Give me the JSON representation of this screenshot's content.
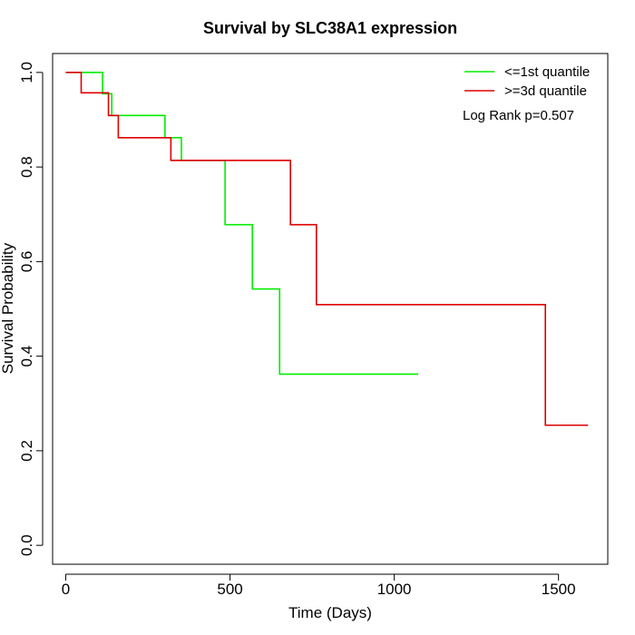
{
  "chart_data": {
    "type": "line",
    "step": true,
    "title": "Survival by SLC38A1 expression",
    "xlabel": "Time (Days)",
    "ylabel": "Survival Probability",
    "xlim": [
      -40,
      1650
    ],
    "ylim": [
      -0.04,
      1.04
    ],
    "xticks": [
      0,
      500,
      1000,
      1500
    ],
    "yticks": [
      0.0,
      0.2,
      0.4,
      0.6,
      0.8,
      1.0
    ],
    "xtick_labels": [
      "0",
      "500",
      "1000",
      "1500"
    ],
    "ytick_labels": [
      "0.0",
      "0.2",
      "0.4",
      "0.6",
      "0.8",
      "1.0"
    ],
    "grid": false,
    "legend_position": "top-right",
    "annotation": "Log Rank p=0.507",
    "series": [
      {
        "name": "<=1st quantile",
        "color": "#00ee00",
        "times": [
          0,
          112,
          140,
          302,
          352,
          485,
          568,
          651,
          1073
        ],
        "survival": [
          1.0,
          0.955,
          0.909,
          0.862,
          0.814,
          0.678,
          0.542,
          0.362,
          0.362
        ]
      },
      {
        "name": ">=3d quantile",
        "color": "#dd0000",
        "times": [
          0,
          47,
          130,
          160,
          320,
          684,
          763,
          1460,
          1590
        ],
        "survival": [
          1.0,
          0.957,
          0.909,
          0.862,
          0.814,
          0.678,
          0.509,
          0.254,
          0.254
        ]
      }
    ]
  }
}
